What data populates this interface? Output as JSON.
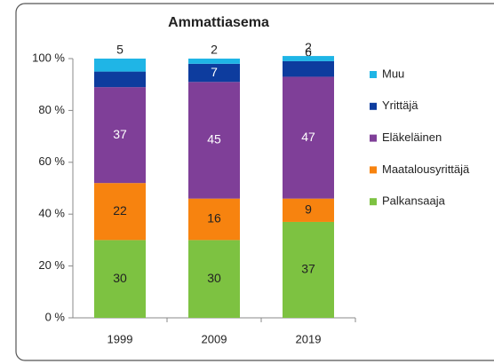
{
  "chart_data": {
    "type": "stacked_bar",
    "title": "Ammattiasema",
    "categories": [
      "1999",
      "2009",
      "2019"
    ],
    "series": [
      {
        "name": "Palkansaaja",
        "color": "#7dc241",
        "values": [
          30,
          30,
          37
        ]
      },
      {
        "name": "Maatalousyrittäjä",
        "color": "#f7830f",
        "values": [
          22,
          16,
          9
        ]
      },
      {
        "name": "Eläkeläinen",
        "color": "#7f3f98",
        "values": [
          37,
          45,
          47
        ]
      },
      {
        "name": "Yrittäjä",
        "color": "#0d3c9e",
        "values": [
          6,
          7,
          6
        ]
      },
      {
        "name": "Muu",
        "color": "#1fb5e6",
        "values": [
          5,
          2,
          2
        ]
      }
    ],
    "ylim": [
      0,
      100
    ],
    "yticks": [
      {
        "value": 0,
        "label": "0 %"
      },
      {
        "value": 20,
        "label": "20 %"
      },
      {
        "value": 40,
        "label": "40 %"
      },
      {
        "value": 60,
        "label": "60 %"
      },
      {
        "value": 80,
        "label": "80 %"
      },
      {
        "value": 100,
        "label": "100 %"
      }
    ],
    "legend": "right"
  }
}
